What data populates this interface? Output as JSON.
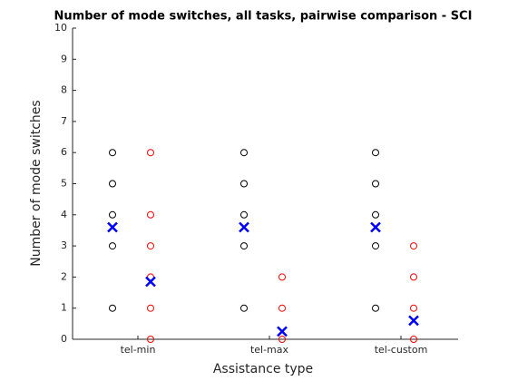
{
  "chart_data": {
    "type": "scatter",
    "title": "Number of mode switches, all tasks, pairwise comparison - SCI",
    "xlabel": "Assistance type",
    "ylabel": "Number of mode switches",
    "categories": [
      "tel-min",
      "tel-max",
      "tel-custom"
    ],
    "series": [
      {
        "color": "#000000",
        "mean_color": "#0000ff",
        "values": [
          [
            6,
            5,
            4,
            3,
            1
          ],
          [
            6,
            5,
            4,
            3,
            1
          ],
          [
            6,
            5,
            4,
            3,
            1
          ]
        ],
        "means": [
          3.6,
          3.6,
          3.6
        ]
      },
      {
        "color": "#ff0000",
        "mean_color": "#0000ff",
        "values": [
          [
            6,
            4,
            3,
            2,
            1,
            0
          ],
          [
            2,
            1,
            0
          ],
          [
            3,
            2,
            1,
            0
          ]
        ],
        "means": [
          1.85,
          0.25,
          0.6
        ]
      }
    ],
    "ylim": [
      0,
      10
    ],
    "yticks": [
      0,
      1,
      2,
      3,
      4,
      5,
      6,
      7,
      8,
      9,
      10
    ]
  }
}
